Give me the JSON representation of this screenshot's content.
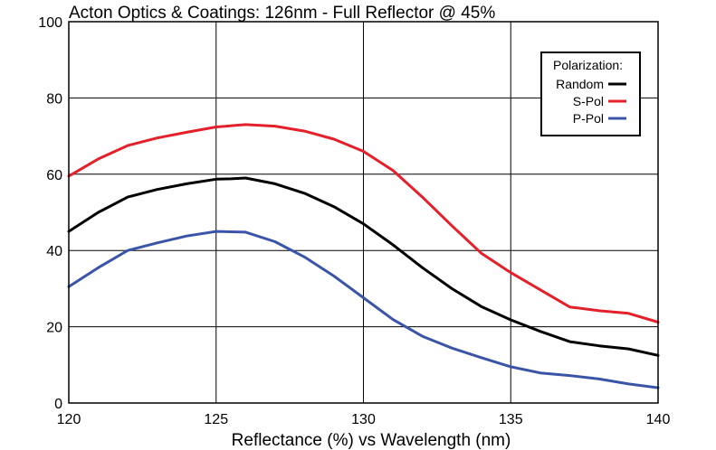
{
  "chart_data": {
    "type": "line",
    "title": "Acton Optics & Coatings:  126nm - Full Reflector @ 45%",
    "xlabel": "Reflectance (%)  vs  Wavelength (nm)",
    "ylabel": "",
    "xlim": [
      120,
      140
    ],
    "ylim": [
      0,
      100
    ],
    "xticks": [
      120,
      125,
      130,
      135,
      140
    ],
    "yticks": [
      0,
      20,
      40,
      60,
      80,
      100
    ],
    "grid": true,
    "legend": {
      "title": "Polarization:",
      "placement": "top-right",
      "entries": [
        {
          "label": "Random",
          "color": "#000000"
        },
        {
          "label": "S-Pol",
          "color": "#e4202a"
        },
        {
          "label": "P-Pol",
          "color": "#3a55a8"
        }
      ]
    },
    "series": [
      {
        "name": "Random",
        "color": "#000000",
        "x": [
          120,
          121,
          122,
          123,
          124,
          125,
          125.5,
          126,
          127,
          128,
          129,
          130,
          131,
          132,
          133,
          134,
          135,
          136,
          137,
          138,
          139,
          140
        ],
        "y": [
          45,
          50,
          54,
          56,
          57.5,
          58.7,
          58.8,
          59,
          57.5,
          55,
          51.5,
          47,
          41.5,
          35.5,
          30,
          25.3,
          21.8,
          18.8,
          16.1,
          15,
          14.2,
          12.5
        ]
      },
      {
        "name": "S-Pol",
        "color": "#e4202a",
        "x": [
          120,
          121,
          122,
          123,
          124,
          125,
          126,
          127,
          128,
          129,
          130,
          131,
          132,
          133,
          134,
          135,
          136,
          137,
          138,
          139,
          140
        ],
        "y": [
          59.5,
          64,
          67.5,
          69.5,
          71,
          72.4,
          73,
          72.6,
          71.3,
          69.2,
          66,
          61,
          54,
          46.5,
          39.3,
          34.2,
          29.7,
          25.2,
          24.2,
          23.5,
          21.2
        ]
      },
      {
        "name": "P-Pol",
        "color": "#3a55a8",
        "x": [
          120,
          121,
          122,
          123,
          124,
          125,
          126,
          127,
          128,
          129,
          130,
          131,
          132,
          133,
          134,
          135,
          136,
          137,
          138,
          139,
          140
        ],
        "y": [
          30.5,
          35.5,
          40,
          42,
          43.8,
          45,
          44.8,
          42.3,
          38.3,
          33.3,
          27.6,
          21.9,
          17.5,
          14.4,
          11.9,
          9.5,
          7.9,
          7.2,
          6.3,
          5,
          4
        ]
      }
    ]
  }
}
